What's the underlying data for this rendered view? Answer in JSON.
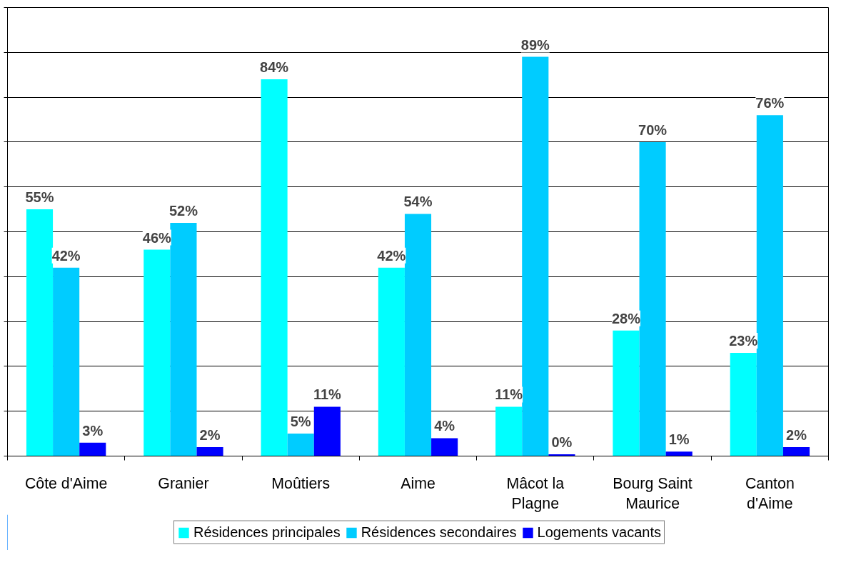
{
  "chart_data": {
    "type": "bar",
    "categories": [
      "Côte d'Aime",
      "Granier",
      "Moûtiers",
      "Aime",
      "Mâcot la\nPlagne",
      "Bourg Saint\nMaurice",
      "Canton\nd'Aime"
    ],
    "series": [
      {
        "name": "Résidences principales",
        "color": "#00ffff",
        "values": [
          55,
          46,
          84,
          42,
          11,
          28,
          23
        ],
        "value_labels": [
          "55%",
          "46%",
          "84%",
          "42%",
          "11%",
          "28%",
          "23%"
        ]
      },
      {
        "name": "Résidences secondaires",
        "color": "#00ccff",
        "values": [
          42,
          52,
          5,
          54,
          89,
          70,
          76
        ],
        "value_labels": [
          "42%",
          "52%",
          "5%",
          "54%",
          "89%",
          "70%",
          "76%"
        ]
      },
      {
        "name": "Logements vacants",
        "color": "#0000ff",
        "values": [
          3,
          2,
          11,
          4,
          0.4,
          1,
          2
        ],
        "value_labels": [
          "3%",
          "2%",
          "11%",
          "4%",
          "0%",
          "1%",
          "2%"
        ]
      }
    ],
    "ylim": [
      0,
      100
    ],
    "yticks": [
      {
        "value": 0,
        "label": null
      },
      {
        "value": 10,
        "label": null
      },
      {
        "value": 20,
        "label": null
      },
      {
        "value": 30,
        "label": null
      },
      {
        "value": 40,
        "label": null
      },
      {
        "value": 50,
        "label": null
      },
      {
        "value": 60,
        "label": null
      },
      {
        "value": 70,
        "label": null
      },
      {
        "value": 80,
        "label": null
      },
      {
        "value": 90,
        "label": null
      },
      {
        "value": 100,
        "label": null
      }
    ],
    "tick_labels": "x",
    "grid": "y",
    "legend": "bottom"
  }
}
